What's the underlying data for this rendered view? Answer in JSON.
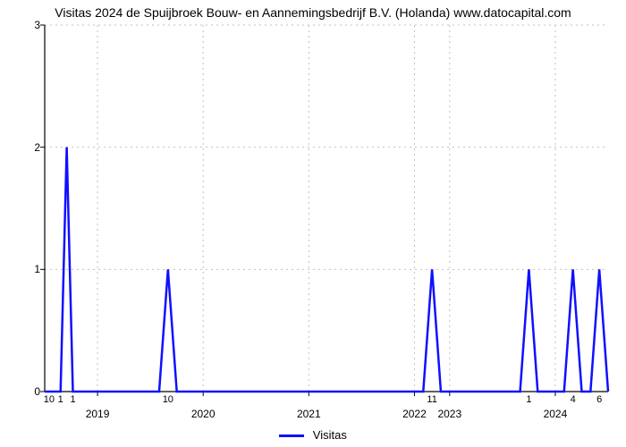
{
  "title": "Visitas 2024 de Spuijbroek Bouw- en Aannemingsbedrijf B.V. (Holanda) www.datocapital.com",
  "chart": {
    "type": "line",
    "line_color": "#1010ff",
    "line_width": 2.5,
    "background_color": "#ffffff",
    "grid_color": "#c0c0c0",
    "axis_color": "#000000",
    "tick_fontsize": 12,
    "xlim": [
      0,
      64
    ],
    "ylim": [
      0,
      3
    ],
    "ytick_positions": [
      0,
      1,
      2,
      3
    ],
    "ytick_labels": [
      "0",
      "1",
      "2",
      "3"
    ],
    "x_year_ticks": [
      {
        "x": 6,
        "label": "2019"
      },
      {
        "x": 18,
        "label": "2020"
      },
      {
        "x": 30,
        "label": "2021"
      },
      {
        "x": 42,
        "label": "2022"
      },
      {
        "x": 46,
        "label": "2023"
      },
      {
        "x": 58,
        "label": "2024"
      }
    ],
    "bar_labels": [
      {
        "x": 0.5,
        "text": "10"
      },
      {
        "x": 1.8,
        "text": "1"
      },
      {
        "x": 3.2,
        "text": "1"
      },
      {
        "x": 14,
        "text": "10"
      },
      {
        "x": 44,
        "text": "11"
      },
      {
        "x": 55,
        "text": "1"
      },
      {
        "x": 60,
        "text": "4"
      },
      {
        "x": 63,
        "text": "6"
      }
    ],
    "points": [
      {
        "x": 0,
        "y": 0
      },
      {
        "x": 1.8,
        "y": 0
      },
      {
        "x": 2.5,
        "y": 2
      },
      {
        "x": 3.2,
        "y": 0
      },
      {
        "x": 13,
        "y": 0
      },
      {
        "x": 14,
        "y": 1
      },
      {
        "x": 15,
        "y": 0
      },
      {
        "x": 43,
        "y": 0
      },
      {
        "x": 44,
        "y": 1
      },
      {
        "x": 45,
        "y": 0
      },
      {
        "x": 54,
        "y": 0
      },
      {
        "x": 55,
        "y": 1
      },
      {
        "x": 56,
        "y": 0
      },
      {
        "x": 59,
        "y": 0
      },
      {
        "x": 60,
        "y": 1
      },
      {
        "x": 61,
        "y": 0
      },
      {
        "x": 62,
        "y": 0
      },
      {
        "x": 63,
        "y": 1
      },
      {
        "x": 64,
        "y": 0
      }
    ]
  },
  "legend": {
    "label": "Visitas",
    "color": "#1010ff"
  }
}
